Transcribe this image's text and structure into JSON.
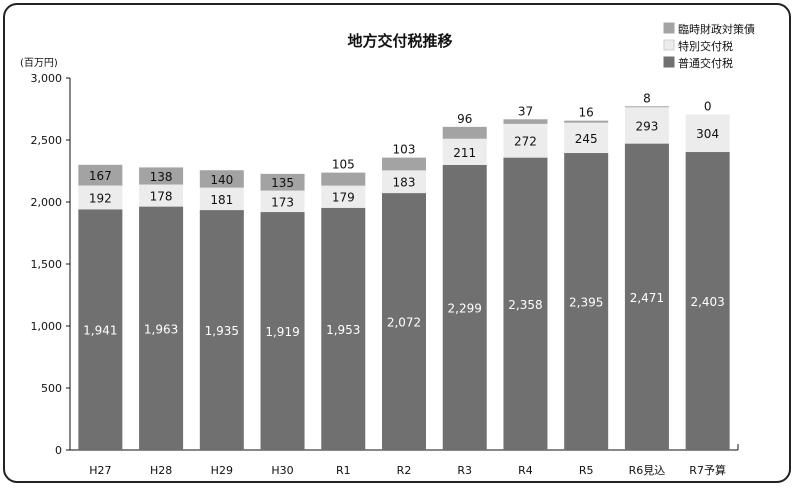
{
  "chart_data": {
    "type": "bar",
    "stacked": true,
    "title": "地方交付税推移",
    "ylabel": "(百万円)",
    "xlabel": "",
    "ylim": [
      0,
      3000
    ],
    "yticks": [
      "3,000",
      "2,500",
      "2,000",
      "1,500",
      "1,000",
      "500",
      "0"
    ],
    "categories": [
      "H27",
      "H28",
      "H29",
      "H30",
      "R1",
      "R2",
      "R3",
      "R4",
      "R5",
      "R6見込",
      "R7予算"
    ],
    "series": [
      {
        "name": "普通交付税",
        "color": "#707070",
        "values": [
          1941,
          1963,
          1935,
          1919,
          1953,
          2072,
          2299,
          2358,
          2395,
          2471,
          2403
        ],
        "labels": [
          "1,941",
          "1,963",
          "1,935",
          "1,919",
          "1,953",
          "2,072",
          "2,299",
          "2,358",
          "2,395",
          "2,471",
          "2,403"
        ]
      },
      {
        "name": "特別交付税",
        "color": "#ececec",
        "values": [
          192,
          178,
          181,
          173,
          179,
          183,
          211,
          272,
          245,
          293,
          304
        ],
        "labels": [
          "192",
          "178",
          "181",
          "173",
          "179",
          "183",
          "211",
          "272",
          "245",
          "293",
          "304"
        ]
      },
      {
        "name": "臨時財政対策債",
        "color": "#a3a3a3",
        "values": [
          167,
          138,
          140,
          135,
          105,
          103,
          96,
          37,
          16,
          8,
          0
        ],
        "labels": [
          "167",
          "138",
          "140",
          "135",
          "105",
          "103",
          "96",
          "37",
          "16",
          "8",
          "0"
        ]
      }
    ],
    "legend": {
      "position": "top-right",
      "order": [
        "臨時財政対策債",
        "特別交付税",
        "普通交付税"
      ]
    }
  }
}
